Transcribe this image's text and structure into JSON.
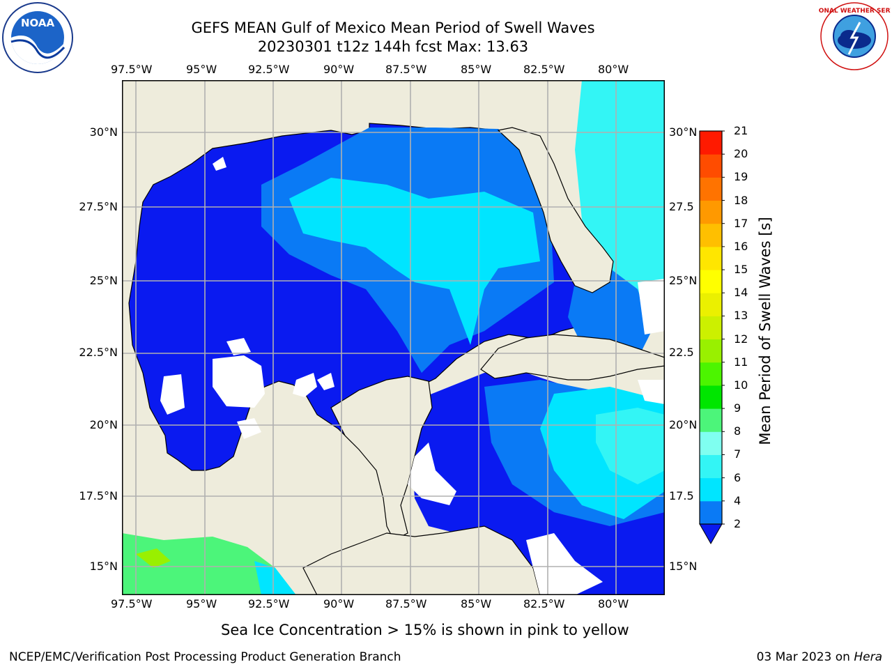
{
  "title": {
    "line1": "GEFS MEAN Gulf of Mexico Mean Period of Swell Waves",
    "line2": "20230301 t12z 144h fcst   Max: 13.63"
  },
  "map": {
    "lon_ticks_top": [
      "97.5°W",
      "95°W",
      "92.5°W",
      "90°W",
      "87.5°W",
      "85°W",
      "82.5°W",
      "80°W"
    ],
    "lon_ticks_bottom": [
      "97.5°W",
      "95°W",
      "92.5°W",
      "90°W",
      "87.5°W",
      "85°W",
      "82.5°W",
      "80°W"
    ],
    "lat_ticks_left": [
      "30°N",
      "27.5°N",
      "25°N",
      "22.5°N",
      "20°N",
      "17.5°N",
      "15°N"
    ],
    "lat_ticks_right": [
      "30°N",
      "27.5",
      "25°N",
      "22.5",
      "20°N",
      "17.5",
      "15°N"
    ],
    "colors": {
      "land": "#eeecdc",
      "grid": "#b0b0b0",
      "coast": "#000000",
      "nodata": "#ffffff"
    }
  },
  "colorbar": {
    "label": "Mean Period of Swell Waves [s]",
    "ticks": [
      "2",
      "4",
      "6",
      "7",
      "8",
      "9",
      "10",
      "11",
      "12",
      "13",
      "14",
      "15",
      "16",
      "17",
      "18",
      "19",
      "20",
      "21"
    ],
    "colors": [
      "#0a7af5",
      "#00e5ff",
      "#33f5f5",
      "#7ffff0",
      "#4cf57a",
      "#00e600",
      "#4cf500",
      "#99f000",
      "#ccf000",
      "#ebf000",
      "#ffff00",
      "#ffe600",
      "#ffbf00",
      "#ff9900",
      "#ff7300",
      "#ff4c00",
      "#ff1a00"
    ],
    "extend_color": "#0a1af0"
  },
  "caption": "Sea Ice Concentration > 15% is shown in pink to yellow",
  "footer": {
    "left": "NCEP/EMC/Verification Post Processing Product Generation Branch",
    "date": "03 Mar 2023 on ",
    "machine": "Hera"
  },
  "logos": {
    "noaa_text": "NOAA",
    "nws_text": "NATIONAL WEATHER SERVICE"
  }
}
